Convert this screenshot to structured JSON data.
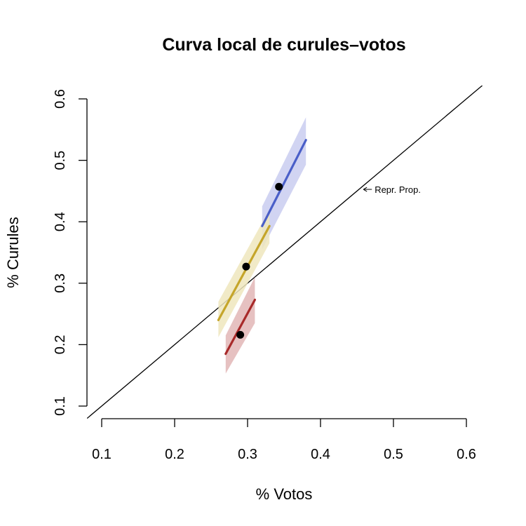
{
  "chart_data": {
    "type": "line",
    "title": "Curva local de curules–votos",
    "xlabel": "% Votos",
    "ylabel": "% Curules",
    "xlim": [
      0.1,
      0.6
    ],
    "ylim": [
      0.1,
      0.6
    ],
    "xticks": [
      "0.1",
      "0.2",
      "0.3",
      "0.4",
      "0.5",
      "0.6"
    ],
    "yticks": [
      "0.1",
      "0.2",
      "0.3",
      "0.4",
      "0.5",
      "0.6"
    ],
    "grid": false,
    "legend": "none",
    "reference_line": {
      "slope": 1,
      "intercept": 0,
      "label": "Repr. Prop.",
      "color": "#000000"
    },
    "annotation": {
      "text": "Repr. Prop.",
      "arrow_to": [
        0.455,
        0.455
      ]
    },
    "series": [
      {
        "color": "#4a5fc8",
        "band_color": "#c9cdf0",
        "line": [
          [
            0.32,
            0.393
          ],
          [
            0.38,
            0.533
          ]
        ],
        "band_upper": [
          [
            0.32,
            0.425
          ],
          [
            0.38,
            0.57
          ]
        ],
        "band_lower": [
          [
            0.32,
            0.355
          ],
          [
            0.38,
            0.493
          ]
        ],
        "point": [
          0.343,
          0.457
        ]
      },
      {
        "color": "#c5a52a",
        "band_color": "#efe6bd",
        "line": [
          [
            0.26,
            0.24
          ],
          [
            0.33,
            0.393
          ]
        ],
        "band_upper": [
          [
            0.26,
            0.27
          ],
          [
            0.33,
            0.42
          ]
        ],
        "band_lower": [
          [
            0.26,
            0.212
          ],
          [
            0.33,
            0.365
          ]
        ],
        "point": [
          0.298,
          0.327
        ]
      },
      {
        "color": "#a82a2a",
        "band_color": "#e2b6b6",
        "line": [
          [
            0.27,
            0.185
          ],
          [
            0.31,
            0.273
          ]
        ],
        "band_upper": [
          [
            0.27,
            0.215
          ],
          [
            0.31,
            0.31
          ]
        ],
        "band_lower": [
          [
            0.27,
            0.153
          ],
          [
            0.31,
            0.235
          ]
        ],
        "point": [
          0.29,
          0.216
        ]
      }
    ]
  }
}
